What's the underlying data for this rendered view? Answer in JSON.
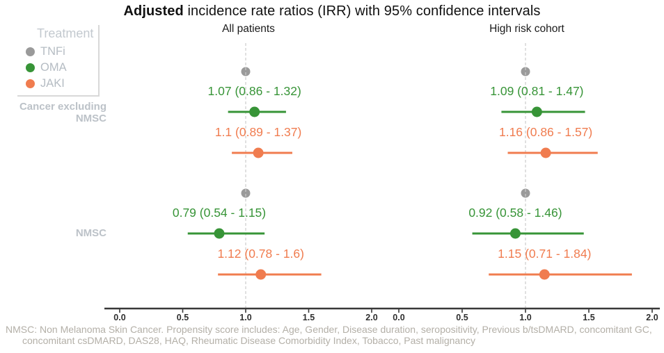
{
  "title": {
    "bold": "Adjusted",
    "rest": " incidence rate ratios (IRR) with 95% confidence intervals"
  },
  "legend": {
    "title": "Treatment"
  },
  "footnote": {
    "line1": "NMSC: Non Melanoma Skin Cancer. Propensity score includes: Age, Gender, Disease duration, seropositivity, Previous b/tsDMARD, concomitant GC,",
    "line2": "concomitant csDMARD, DAS28, HAQ, Rheumatic Disease Comorbidity Index, Tobacco, Past malignancy"
  },
  "colors": {
    "tnfi": "#9A9A9A",
    "oma": "#379437",
    "jaki": "#F07C4F",
    "axis": "#383838",
    "reference_dash": "#cbcbcb",
    "muted_label": "#bcc2c8"
  },
  "chart_data": {
    "type": "forest",
    "title": "Adjusted incidence rate ratios (IRR) with 95% confidence intervals",
    "x_ticks": [
      "0.0",
      "0.5",
      "1.0",
      "1.5",
      "2.0"
    ],
    "xlim": [
      0,
      2.0
    ],
    "reference_line": 1.0,
    "legend_position": "top-left",
    "treatments": [
      {
        "name": "TNFi",
        "color": "#9A9A9A"
      },
      {
        "name": "OMA",
        "color": "#379437"
      },
      {
        "name": "JAKI",
        "color": "#F07C4F"
      }
    ],
    "outcome_groups": [
      "Cancer excluding NMSC",
      "NMSC"
    ],
    "panels": [
      {
        "label": "All patients",
        "outcomes": [
          {
            "name": "Cancer excluding NMSC",
            "estimates": [
              {
                "treatment": "TNFi",
                "irr": 1.0,
                "reference": true
              },
              {
                "treatment": "OMA",
                "irr": 1.07,
                "lo": 0.86,
                "hi": 1.32,
                "label": "1.07 (0.86 - 1.32)"
              },
              {
                "treatment": "JAKI",
                "irr": 1.1,
                "lo": 0.89,
                "hi": 1.37,
                "label": "1.1 (0.89 - 1.37)"
              }
            ]
          },
          {
            "name": "NMSC",
            "estimates": [
              {
                "treatment": "TNFi",
                "irr": 1.0,
                "reference": true
              },
              {
                "treatment": "OMA",
                "irr": 0.79,
                "lo": 0.54,
                "hi": 1.15,
                "label": "0.79 (0.54 - 1.15)"
              },
              {
                "treatment": "JAKI",
                "irr": 1.12,
                "lo": 0.78,
                "hi": 1.6,
                "label": "1.12 (0.78 - 1.6)"
              }
            ]
          }
        ]
      },
      {
        "label": "High risk cohort",
        "outcomes": [
          {
            "name": "Cancer excluding NMSC",
            "estimates": [
              {
                "treatment": "TNFi",
                "irr": 1.0,
                "reference": true
              },
              {
                "treatment": "OMA",
                "irr": 1.09,
                "lo": 0.81,
                "hi": 1.47,
                "label": "1.09 (0.81 - 1.47)"
              },
              {
                "treatment": "JAKI",
                "irr": 1.16,
                "lo": 0.86,
                "hi": 1.57,
                "label": "1.16 (0.86 - 1.57)"
              }
            ]
          },
          {
            "name": "NMSC",
            "estimates": [
              {
                "treatment": "TNFi",
                "irr": 1.0,
                "reference": true
              },
              {
                "treatment": "OMA",
                "irr": 0.92,
                "lo": 0.58,
                "hi": 1.46,
                "label": "0.92 (0.58 - 1.46)"
              },
              {
                "treatment": "JAKI",
                "irr": 1.15,
                "lo": 0.71,
                "hi": 1.84,
                "label": "1.15 (0.71 - 1.84)"
              }
            ]
          }
        ]
      }
    ]
  }
}
